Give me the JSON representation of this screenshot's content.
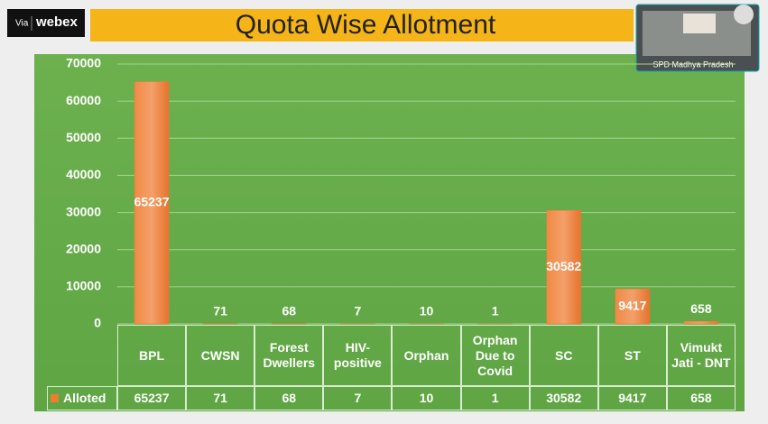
{
  "overlay": {
    "via": "Via",
    "brand": "webex",
    "participant": "SPD Madhya Pradesh"
  },
  "chart_data": {
    "type": "bar",
    "title": "Quota Wise Allotment",
    "categories": [
      "BPL",
      "CWSN",
      "Forest Dwellers",
      "HIV-positive",
      "Orphan",
      "Orphan Due to Covid",
      "SC",
      "ST",
      "Vimukt Jati - DNT"
    ],
    "series": [
      {
        "name": "Alloted",
        "color": "#ed7d31",
        "values": [
          65237,
          71,
          68,
          7,
          10,
          1,
          30582,
          9417,
          658
        ]
      }
    ],
    "ylim": [
      0,
      70000
    ],
    "yticks": [
      0,
      10000,
      20000,
      30000,
      40000,
      50000,
      60000,
      70000
    ],
    "grid": true
  }
}
